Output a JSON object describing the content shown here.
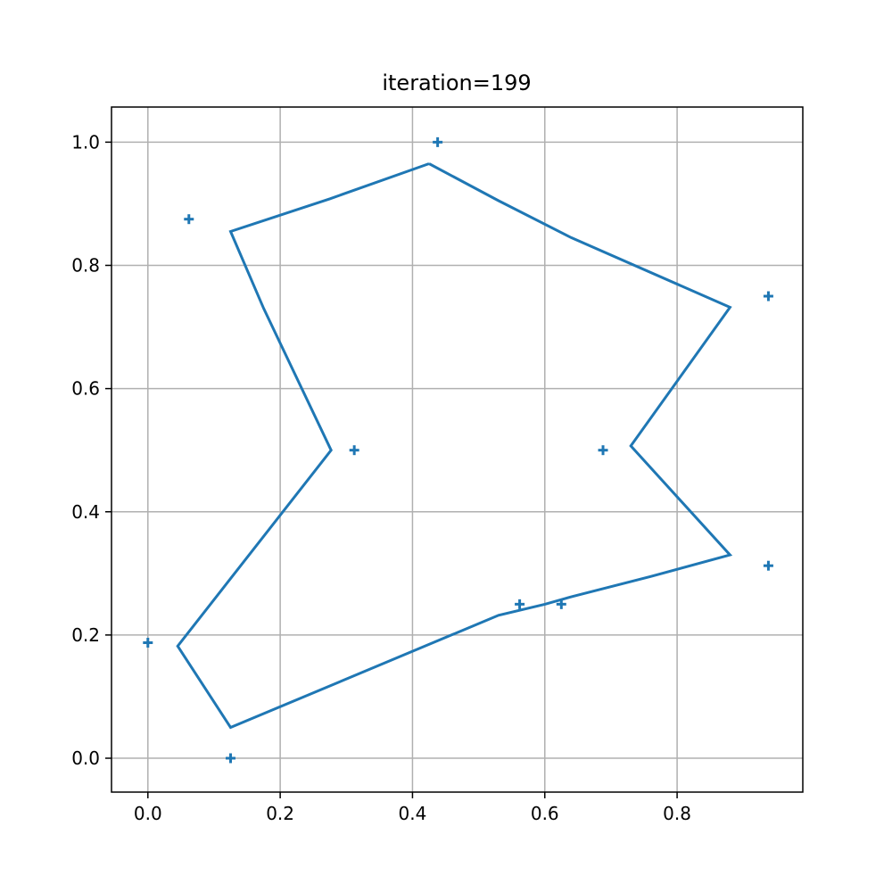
{
  "chart_data": {
    "type": "line",
    "title": "iteration=199",
    "xlabel": "",
    "ylabel": "",
    "xlim": [
      -0.055,
      0.99
    ],
    "ylim": [
      -0.055,
      1.057
    ],
    "xticks": [
      0.0,
      0.2,
      0.4,
      0.6,
      0.8
    ],
    "yticks": [
      0.0,
      0.2,
      0.4,
      0.6,
      0.8,
      1.0
    ],
    "xtick_labels": [
      "0.0",
      "0.2",
      "0.4",
      "0.6",
      "0.8"
    ],
    "ytick_labels": [
      "0.0",
      "0.2",
      "0.4",
      "0.6",
      "0.8",
      "1.0"
    ],
    "grid": true,
    "color": "#1f77b4",
    "series": [
      {
        "kind": "scatter",
        "marker": "plus",
        "x": [
          0.438,
          0.062,
          0.938,
          0.312,
          0.688,
          0.938,
          0.562,
          0.625,
          0.0,
          0.125
        ],
        "y": [
          1.0,
          0.875,
          0.75,
          0.5,
          0.5,
          0.3125,
          0.25,
          0.25,
          0.1875,
          0.0
        ]
      },
      {
        "kind": "line",
        "closed": true,
        "x": [
          0.425,
          0.53,
          0.64,
          0.88,
          0.73,
          0.88,
          0.76,
          0.64,
          0.6,
          0.53,
          0.125,
          0.045,
          0.277,
          0.175,
          0.125,
          0.275,
          0.425
        ],
        "y": [
          0.965,
          0.905,
          0.845,
          0.732,
          0.507,
          0.33,
          0.295,
          0.262,
          0.25,
          0.232,
          0.05,
          0.182,
          0.5,
          0.73,
          0.855,
          0.908,
          0.965
        ]
      }
    ]
  }
}
